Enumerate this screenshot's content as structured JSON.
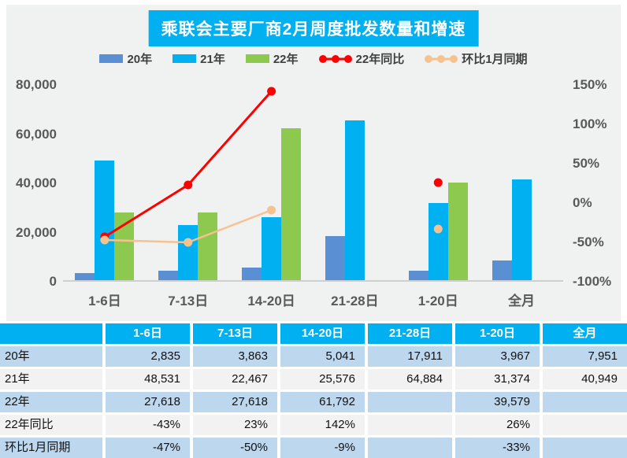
{
  "title": "乘联会主要厂商2月周度批发数量和增速",
  "colors": {
    "accent_cyan": "#00b0f0",
    "bar_20": "#5b8fd4",
    "bar_21": "#00b0f0",
    "bar_22": "#8ec94f",
    "line_yoy": "#ff0000",
    "line_mom": "#f6c28f",
    "panel_bg": "#f0f1f1",
    "axis_text": "#595959",
    "table_row_blue": "#bdd7ee",
    "table_row_gray": "#f2f2f2"
  },
  "legend": [
    {
      "label": "20年",
      "type": "bar",
      "color": "#5b8fd4"
    },
    {
      "label": "21年",
      "type": "bar",
      "color": "#00b0f0"
    },
    {
      "label": "22年",
      "type": "bar",
      "color": "#8ec94f"
    },
    {
      "label": "22年同比",
      "type": "line",
      "color": "#ff0000"
    },
    {
      "label": "环比1月同期",
      "type": "line",
      "color": "#f6c28f"
    }
  ],
  "chart_data": {
    "type": "bar",
    "subtype": "combo-bar-line",
    "title": "乘联会主要厂商2月周度批发数量和增速",
    "categories": [
      "1-6日",
      "7-13日",
      "14-20日",
      "21-28日",
      "1-20日",
      "全月"
    ],
    "bar_series": [
      {
        "name": "20年",
        "color": "#5b8fd4",
        "values": [
          2835,
          3863,
          5041,
          17911,
          3967,
          7951
        ]
      },
      {
        "name": "21年",
        "color": "#00b0f0",
        "values": [
          48531,
          22467,
          25576,
          64884,
          31374,
          40949
        ]
      },
      {
        "name": "22年",
        "color": "#8ec94f",
        "values": [
          27618,
          27618,
          61792,
          null,
          39579,
          null
        ]
      }
    ],
    "line_series": [
      {
        "name": "22年同比",
        "color": "#ff0000",
        "stroke": 3,
        "values": [
          -43,
          23,
          142,
          null,
          26,
          null
        ]
      },
      {
        "name": "环比1月同期",
        "color": "#f6c28f",
        "stroke": 2.5,
        "values": [
          -47,
          -50,
          -9,
          null,
          -33,
          null
        ]
      }
    ],
    "left_axis": {
      "min": 0,
      "max": 80000,
      "ticks": [
        "0",
        "20,000",
        "40,000",
        "60,000",
        "80,000"
      ]
    },
    "right_axis": {
      "min": -100,
      "max": 150,
      "ticks": [
        "-100%",
        "-50%",
        "0%",
        "50%",
        "100%",
        "150%"
      ]
    },
    "grid": false,
    "legend_position": "top"
  },
  "table": {
    "columns": [
      "",
      "1-6日",
      "7-13日",
      "14-20日",
      "21-28日",
      "1-20日",
      "全月"
    ],
    "rows": [
      {
        "label": "20年",
        "cells": [
          "2,835",
          "3,863",
          "5,041",
          "17,911",
          "3,967",
          "7,951"
        ]
      },
      {
        "label": "21年",
        "cells": [
          "48,531",
          "22,467",
          "25,576",
          "64,884",
          "31,374",
          "40,949"
        ]
      },
      {
        "label": "22年",
        "cells": [
          "27,618",
          "27,618",
          "61,792",
          "",
          "39,579",
          ""
        ]
      },
      {
        "label": "22年同比",
        "cells": [
          "-43%",
          "23%",
          "142%",
          "",
          "26%",
          ""
        ]
      },
      {
        "label": "环比1月同期",
        "cells": [
          "-47%",
          "-50%",
          "-9%",
          "",
          "-33%",
          ""
        ]
      }
    ]
  }
}
